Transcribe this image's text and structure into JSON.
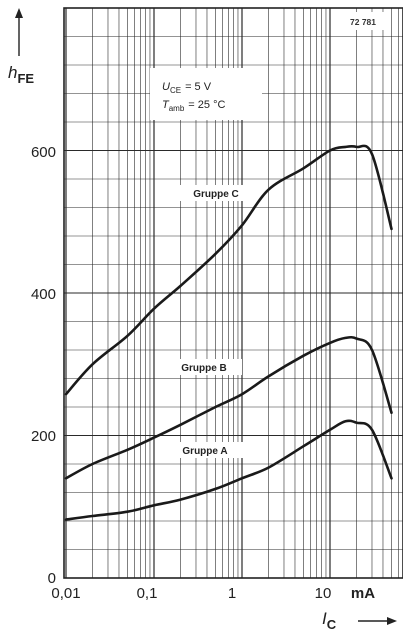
{
  "chart_data": {
    "type": "line",
    "figure_number": "72 781",
    "y_axis": {
      "label_main": "h",
      "label_sub": "FE",
      "range": [
        0,
        800
      ],
      "ticks": [
        0,
        200,
        400,
        600
      ],
      "tick_labels": [
        "0",
        "200",
        "400",
        "600"
      ]
    },
    "x_axis": {
      "label_main": "I",
      "label_sub": "C",
      "scale": "log",
      "range": [
        0.01,
        50
      ],
      "ticks": [
        0.01,
        0.1,
        1,
        10
      ],
      "tick_labels": [
        "0,01",
        "0,1",
        "1",
        "10"
      ],
      "unit": "mA"
    },
    "conditions": {
      "line1_main": "U",
      "line1_sub": "CE",
      "line1_value": "= 5 V",
      "line2_main": "T",
      "line2_sub": "amb",
      "line2_value": "= 25 °C"
    },
    "grid": true,
    "series": [
      {
        "name": "Gruppe C",
        "x": [
          0.01,
          0.02,
          0.05,
          0.1,
          0.2,
          0.5,
          1,
          2,
          5,
          10,
          15,
          20,
          30,
          50
        ],
        "y": [
          258,
          300,
          340,
          378,
          410,
          455,
          495,
          545,
          575,
          600,
          605,
          605,
          595,
          490
        ]
      },
      {
        "name": "Gruppe B",
        "x": [
          0.01,
          0.02,
          0.05,
          0.1,
          0.2,
          0.5,
          1,
          2,
          5,
          10,
          15,
          20,
          30,
          50
        ],
        "y": [
          140,
          160,
          180,
          197,
          215,
          240,
          258,
          283,
          312,
          330,
          337,
          336,
          320,
          232
        ]
      },
      {
        "name": "Gruppe A",
        "x": [
          0.01,
          0.02,
          0.05,
          0.1,
          0.2,
          0.5,
          1,
          2,
          5,
          10,
          15,
          20,
          30,
          50
        ],
        "y": [
          82,
          87,
          93,
          102,
          110,
          125,
          140,
          155,
          185,
          208,
          220,
          218,
          208,
          140
        ]
      }
    ]
  }
}
